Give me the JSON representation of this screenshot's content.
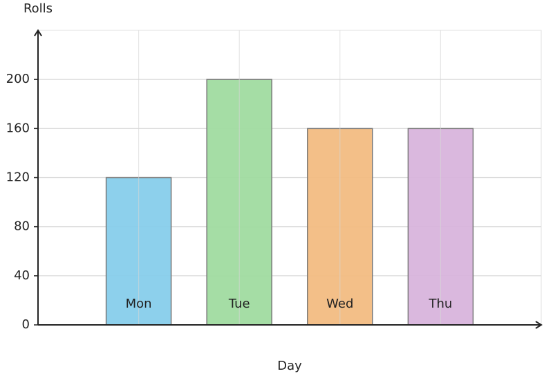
{
  "chart_data": {
    "type": "bar",
    "y_label": "Rolls",
    "x_label": "Day",
    "categories": [
      "Mon",
      "Tue",
      "Wed",
      "Thu"
    ],
    "values": [
      120,
      200,
      160,
      160
    ],
    "colors": [
      "#87ceeb",
      "#a0dba0",
      "#f2bc82",
      "#d8b4dc"
    ],
    "ylim": [
      0,
      240
    ],
    "yticks": [
      0,
      40,
      80,
      120,
      160,
      200
    ],
    "grid": true
  }
}
